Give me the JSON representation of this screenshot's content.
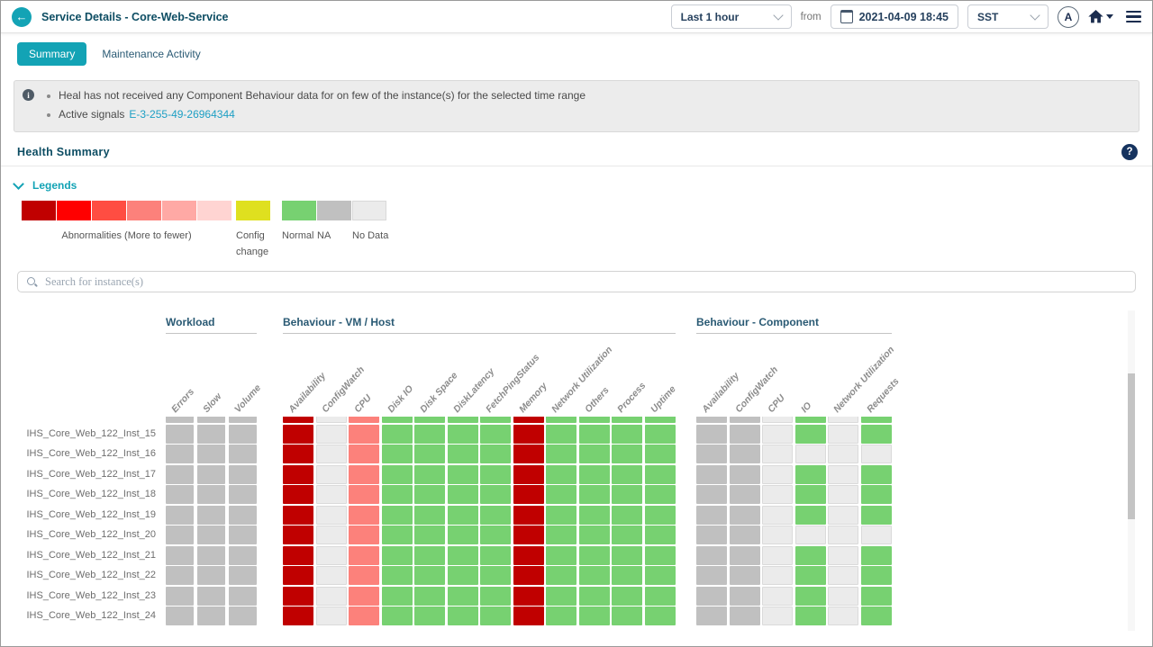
{
  "header": {
    "title": "Service Details - Core-Web-Service",
    "time_range": "Last 1 hour",
    "from_label": "from",
    "datetime": "2021-04-09 18:45",
    "timezone": "SST",
    "avatar_letter": "A"
  },
  "tabs": {
    "summary": "Summary",
    "maintenance": "Maintenance Activity"
  },
  "notice": {
    "bullet1": "Heal has not received any Component Behaviour data for on few of the instance(s) for the selected time range",
    "bullet2_label": "Active signals",
    "bullet2_link": "E-3-255-49-26964344"
  },
  "section": {
    "title": "Health Summary"
  },
  "legends": {
    "label": "Legends",
    "items": [
      {
        "colors": [
          "#c00000",
          "#ff0000",
          "#ff4d42",
          "#fc817b",
          "#ffa9a5",
          "#ffd4d2"
        ],
        "caption": "Abnormalities (More to fewer)",
        "align": "center"
      },
      {
        "colors": [
          "#dfe01f"
        ],
        "caption": "Config change",
        "narrow": true
      },
      {
        "colors": [
          "#77d171"
        ],
        "caption": "Normal"
      },
      {
        "colors": [
          "#c0c0c0"
        ],
        "caption": "NA"
      },
      {
        "colors": [
          "#ebebeb"
        ],
        "caption": "No Data",
        "bordered": true
      }
    ]
  },
  "search": {
    "placeholder": "Search for instance(s)"
  },
  "colors": {
    "sev1": "#c00000",
    "sev4": "#fc817b",
    "normal": "#77d171",
    "na": "#c0c0c0",
    "nodata": "#ebebeb"
  },
  "heatmap": {
    "groups": [
      {
        "key": "workload",
        "name": "Workload",
        "columns": [
          "Errors",
          "Slow",
          "Volume"
        ]
      },
      {
        "key": "vmhost",
        "name": "Behaviour - VM / Host",
        "columns": [
          "Availability",
          "ConfigWatch",
          "CPU",
          "Disk IO",
          "Disk Space",
          "DiskLatency",
          "FetchPingStatus",
          "Memory",
          "Network Utilization",
          "Others",
          "Process",
          "Uptime"
        ]
      },
      {
        "key": "component",
        "name": "Behaviour - Component",
        "columns": [
          "Availability",
          "ConfigWatch",
          "CPU",
          "IO",
          "Network Utilization",
          "Requests"
        ]
      }
    ],
    "partial_row": {
      "label": "",
      "workload": [
        "na",
        "na",
        "na"
      ],
      "vmhost": [
        "sev1",
        "nodata",
        "sev4",
        "normal",
        "normal",
        "normal",
        "normal",
        "sev1",
        "normal",
        "normal",
        "normal",
        "normal"
      ],
      "component": [
        "na",
        "na",
        "nodata",
        "normal",
        "nodata",
        "normal"
      ]
    },
    "rows": [
      {
        "label": "IHS_Core_Web_122_Inst_15",
        "workload": [
          "na",
          "na",
          "na"
        ],
        "vmhost": [
          "sev1",
          "nodata",
          "sev4",
          "normal",
          "normal",
          "normal",
          "normal",
          "sev1",
          "normal",
          "normal",
          "normal",
          "normal"
        ],
        "component": [
          "na",
          "na",
          "nodata",
          "normal",
          "nodata",
          "normal"
        ]
      },
      {
        "label": "IHS_Core_Web_122_Inst_16",
        "workload": [
          "na",
          "na",
          "na"
        ],
        "vmhost": [
          "sev1",
          "nodata",
          "sev4",
          "normal",
          "normal",
          "normal",
          "normal",
          "sev1",
          "normal",
          "normal",
          "normal",
          "normal"
        ],
        "component": [
          "na",
          "na",
          "nodata",
          "nodata",
          "nodata",
          "nodata"
        ]
      },
      {
        "label": "IHS_Core_Web_122_Inst_17",
        "workload": [
          "na",
          "na",
          "na"
        ],
        "vmhost": [
          "sev1",
          "nodata",
          "sev4",
          "normal",
          "normal",
          "normal",
          "normal",
          "sev1",
          "normal",
          "normal",
          "normal",
          "normal"
        ],
        "component": [
          "na",
          "na",
          "nodata",
          "normal",
          "nodata",
          "normal"
        ]
      },
      {
        "label": "IHS_Core_Web_122_Inst_18",
        "workload": [
          "na",
          "na",
          "na"
        ],
        "vmhost": [
          "sev1",
          "nodata",
          "sev4",
          "normal",
          "normal",
          "normal",
          "normal",
          "sev1",
          "normal",
          "normal",
          "normal",
          "normal"
        ],
        "component": [
          "na",
          "na",
          "nodata",
          "normal",
          "nodata",
          "normal"
        ]
      },
      {
        "label": "IHS_Core_Web_122_Inst_19",
        "workload": [
          "na",
          "na",
          "na"
        ],
        "vmhost": [
          "sev1",
          "nodata",
          "sev4",
          "normal",
          "normal",
          "normal",
          "normal",
          "sev1",
          "normal",
          "normal",
          "normal",
          "normal"
        ],
        "component": [
          "na",
          "na",
          "nodata",
          "normal",
          "nodata",
          "normal"
        ]
      },
      {
        "label": "IHS_Core_Web_122_Inst_20",
        "workload": [
          "na",
          "na",
          "na"
        ],
        "vmhost": [
          "sev1",
          "nodata",
          "sev4",
          "normal",
          "normal",
          "normal",
          "normal",
          "sev1",
          "normal",
          "normal",
          "normal",
          "normal"
        ],
        "component": [
          "na",
          "na",
          "nodata",
          "nodata",
          "nodata",
          "nodata"
        ]
      },
      {
        "label": "IHS_Core_Web_122_Inst_21",
        "workload": [
          "na",
          "na",
          "na"
        ],
        "vmhost": [
          "sev1",
          "nodata",
          "sev4",
          "normal",
          "normal",
          "normal",
          "normal",
          "sev1",
          "normal",
          "normal",
          "normal",
          "normal"
        ],
        "component": [
          "na",
          "na",
          "nodata",
          "normal",
          "nodata",
          "normal"
        ]
      },
      {
        "label": "IHS_Core_Web_122_Inst_22",
        "workload": [
          "na",
          "na",
          "na"
        ],
        "vmhost": [
          "sev1",
          "nodata",
          "sev4",
          "normal",
          "normal",
          "normal",
          "normal",
          "sev1",
          "normal",
          "normal",
          "normal",
          "normal"
        ],
        "component": [
          "na",
          "na",
          "nodata",
          "normal",
          "nodata",
          "normal"
        ]
      },
      {
        "label": "IHS_Core_Web_122_Inst_23",
        "workload": [
          "na",
          "na",
          "na"
        ],
        "vmhost": [
          "sev1",
          "nodata",
          "sev4",
          "normal",
          "normal",
          "normal",
          "normal",
          "sev1",
          "normal",
          "normal",
          "normal",
          "normal"
        ],
        "component": [
          "na",
          "na",
          "nodata",
          "normal",
          "nodata",
          "normal"
        ]
      },
      {
        "label": "IHS_Core_Web_122_Inst_24",
        "workload": [
          "na",
          "na",
          "na"
        ],
        "vmhost": [
          "sev1",
          "nodata",
          "sev4",
          "normal",
          "normal",
          "normal",
          "normal",
          "sev1",
          "normal",
          "normal",
          "normal",
          "normal"
        ],
        "component": [
          "na",
          "na",
          "nodata",
          "normal",
          "nodata",
          "normal"
        ]
      }
    ]
  }
}
